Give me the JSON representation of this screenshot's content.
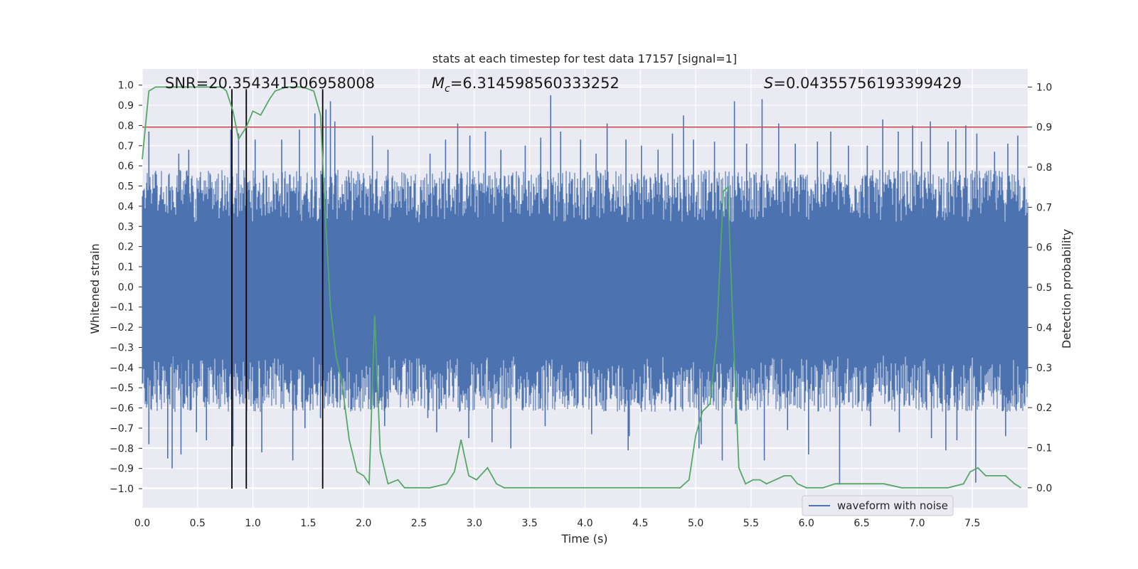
{
  "chart_data": {
    "type": "line",
    "title": "stats at each timestep for test data 17157 [signal=1]",
    "xlabel": "Time (s)",
    "ylabel_left": "Whitened strain",
    "ylabel_right": "Detection probability",
    "xlim": [
      0.0,
      8.0
    ],
    "ylim_left": [
      -1.095,
      1.08
    ],
    "ylim_right": [
      -0.05,
      1.045
    ],
    "x_ticks": [
      "0.0",
      "0.5",
      "1.0",
      "1.5",
      "2.0",
      "2.5",
      "3.0",
      "3.5",
      "4.0",
      "4.5",
      "5.0",
      "5.5",
      "6.0",
      "6.5",
      "7.0",
      "7.5"
    ],
    "y_left_ticks": [
      "1.0",
      "0.9",
      "0.8",
      "0.7",
      "0.6",
      "0.5",
      "0.4",
      "0.3",
      "0.2",
      "0.1",
      "0.0",
      "-0.1",
      "-0.2",
      "-0.3",
      "-0.4",
      "-0.5",
      "-0.6",
      "-0.7",
      "-0.8",
      "-0.9",
      "-1.0"
    ],
    "y_right_ticks": [
      "1.0",
      "0.9",
      "0.8",
      "0.7",
      "0.6",
      "0.5",
      "0.4",
      "0.3",
      "0.2",
      "0.1",
      "0.0"
    ],
    "annotations": {
      "snr": "SNR=20.354341506958008",
      "mc_prefix": "M",
      "mc_sub": "c",
      "mc_value": "=6.314598560333252",
      "s_prefix": "S",
      "s_value": "=0.04355756193399429"
    },
    "legend": [
      {
        "label": "waveform with noise",
        "color": "#4c72b0"
      }
    ],
    "threshold": {
      "value": 0.9,
      "axis": "right",
      "color": "#c44e52"
    },
    "vertical_lines": [
      0.81,
      0.94,
      1.63
    ],
    "series": [
      {
        "name": "waveform with noise",
        "axis": "left",
        "color": "#4c72b0",
        "style": "dense-noise",
        "envelope_top": 0.58,
        "envelope_bottom": -0.62,
        "peaks": [
          [
            0.06,
            0.77
          ],
          [
            0.33,
            0.66
          ],
          [
            0.42,
            0.68
          ],
          [
            0.8,
            0.78
          ],
          [
            0.87,
            0.76
          ],
          [
            1.02,
            0.73
          ],
          [
            1.26,
            0.73
          ],
          [
            1.42,
            0.78
          ],
          [
            1.56,
            0.86
          ],
          [
            1.66,
            0.88
          ],
          [
            1.7,
            0.92
          ],
          [
            1.74,
            0.82
          ],
          [
            2.08,
            0.75
          ],
          [
            2.22,
            0.68
          ],
          [
            2.6,
            0.66
          ],
          [
            2.74,
            0.73
          ],
          [
            2.85,
            0.81
          ],
          [
            2.96,
            0.75
          ],
          [
            3.1,
            0.77
          ],
          [
            3.24,
            0.68
          ],
          [
            3.46,
            0.7
          ],
          [
            3.6,
            0.74
          ],
          [
            3.69,
            0.95
          ],
          [
            3.78,
            0.77
          ],
          [
            3.96,
            0.73
          ],
          [
            4.1,
            0.66
          ],
          [
            4.2,
            0.81
          ],
          [
            4.37,
            0.73
          ],
          [
            4.51,
            0.7
          ],
          [
            4.66,
            0.68
          ],
          [
            4.79,
            0.76
          ],
          [
            4.89,
            0.85
          ],
          [
            4.98,
            0.73
          ],
          [
            5.17,
            0.72
          ],
          [
            5.35,
            0.92
          ],
          [
            5.46,
            0.71
          ],
          [
            5.6,
            0.93
          ],
          [
            5.75,
            0.81
          ],
          [
            5.9,
            0.71
          ],
          [
            6.1,
            0.72
          ],
          [
            6.22,
            0.77
          ],
          [
            6.38,
            0.7
          ],
          [
            6.55,
            0.7
          ],
          [
            6.69,
            0.83
          ],
          [
            6.83,
            0.77
          ],
          [
            6.96,
            0.8
          ],
          [
            7.04,
            0.72
          ],
          [
            7.12,
            0.82
          ],
          [
            7.28,
            0.72
          ],
          [
            7.35,
            0.78
          ],
          [
            7.44,
            0.8
          ],
          [
            7.54,
            0.76
          ],
          [
            7.7,
            0.67
          ],
          [
            7.82,
            0.71
          ],
          [
            7.91,
            0.75
          ]
        ],
        "troughs": [
          [
            0.06,
            -0.78
          ],
          [
            0.23,
            -0.85
          ],
          [
            0.27,
            -0.9
          ],
          [
            0.35,
            -0.83
          ],
          [
            0.49,
            -0.72
          ],
          [
            0.58,
            -0.76
          ],
          [
            0.82,
            -0.79
          ],
          [
            1.08,
            -0.82
          ],
          [
            1.36,
            -0.86
          ],
          [
            1.47,
            -0.7
          ],
          [
            1.61,
            -0.65
          ],
          [
            2.07,
            -0.61
          ],
          [
            2.19,
            -0.69
          ],
          [
            2.58,
            -0.65
          ],
          [
            2.66,
            -0.72
          ],
          [
            2.95,
            -0.75
          ],
          [
            3.16,
            -0.77
          ],
          [
            3.33,
            -0.8
          ],
          [
            3.64,
            -0.69
          ],
          [
            4.06,
            -0.73
          ],
          [
            4.4,
            -0.74
          ],
          [
            4.39,
            -0.81
          ],
          [
            5.03,
            -0.8
          ],
          [
            5.05,
            -0.78
          ],
          [
            5.24,
            -0.86
          ],
          [
            5.36,
            -0.68
          ],
          [
            5.62,
            -0.86
          ],
          [
            5.83,
            -0.71
          ],
          [
            6.02,
            -0.83
          ],
          [
            6.3,
            -0.98
          ],
          [
            6.58,
            -0.69
          ],
          [
            6.84,
            -0.72
          ],
          [
            7.13,
            -0.75
          ],
          [
            7.26,
            -0.81
          ],
          [
            7.36,
            -0.76
          ],
          [
            7.53,
            -0.97
          ],
          [
            7.8,
            -0.74
          ]
        ]
      },
      {
        "name": "detection probability",
        "axis": "right",
        "color": "#55a868",
        "x": [
          0.0,
          0.06,
          0.12,
          0.2,
          0.3,
          0.45,
          0.6,
          0.72,
          0.76,
          0.82,
          0.87,
          0.94,
          1.0,
          1.07,
          1.15,
          1.2,
          1.3,
          1.45,
          1.55,
          1.61,
          1.65,
          1.7,
          1.75,
          1.8,
          1.87,
          1.94,
          2.0,
          2.05,
          2.1,
          2.15,
          2.22,
          2.31,
          2.37,
          2.45,
          2.6,
          2.75,
          2.82,
          2.88,
          2.95,
          3.02,
          3.12,
          3.2,
          3.27,
          3.4,
          3.55,
          3.7,
          3.85,
          3.96,
          4.1,
          4.3,
          4.5,
          4.7,
          4.86,
          4.94,
          5.0,
          5.06,
          5.13,
          5.19,
          5.25,
          5.29,
          5.33,
          5.39,
          5.45,
          5.52,
          5.58,
          5.64,
          5.72,
          5.8,
          5.86,
          5.92,
          6.0,
          6.15,
          6.26,
          6.4,
          6.55,
          6.7,
          6.86,
          6.97,
          7.1,
          7.28,
          7.42,
          7.48,
          7.55,
          7.62,
          7.68,
          7.8,
          7.88,
          7.94
        ],
        "values": [
          0.82,
          0.99,
          1.0,
          1.0,
          1.0,
          1.0,
          1.0,
          1.0,
          0.99,
          0.94,
          0.87,
          0.9,
          0.94,
          0.93,
          0.97,
          0.99,
          1.0,
          1.0,
          0.99,
          0.93,
          0.7,
          0.45,
          0.33,
          0.27,
          0.12,
          0.04,
          0.03,
          0.01,
          0.43,
          0.09,
          0.01,
          0.02,
          0.0,
          0.0,
          0.0,
          0.01,
          0.04,
          0.12,
          0.03,
          0.02,
          0.05,
          0.01,
          0.0,
          0.0,
          0.0,
          0.0,
          0.0,
          0.0,
          0.0,
          0.0,
          0.0,
          0.0,
          0.0,
          0.02,
          0.13,
          0.19,
          0.21,
          0.38,
          0.74,
          0.75,
          0.45,
          0.05,
          0.01,
          0.02,
          0.02,
          0.01,
          0.02,
          0.03,
          0.03,
          0.01,
          0.0,
          0.0,
          0.01,
          0.01,
          0.01,
          0.01,
          0.0,
          0.0,
          0.0,
          0.0,
          0.01,
          0.04,
          0.05,
          0.03,
          0.03,
          0.03,
          0.01,
          0.0
        ]
      }
    ]
  }
}
